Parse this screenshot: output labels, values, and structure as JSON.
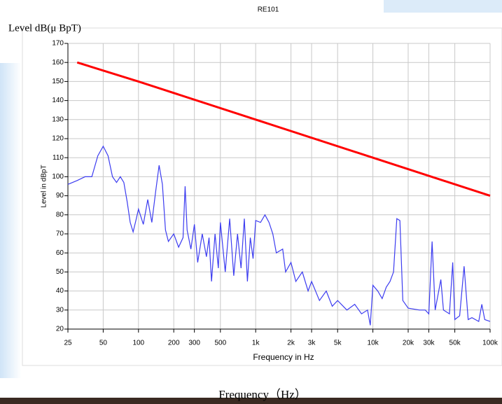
{
  "chart_data": {
    "type": "line",
    "title": "RE101",
    "header": "Level dB(μ BpT)",
    "ylabel": "Level in dBpT",
    "xlabel": "Frequency in Hz",
    "footer": "Frequency（Hz）",
    "xscale": "log",
    "grid": true,
    "xlim": [
      25,
      100000
    ],
    "ylim": [
      20,
      170
    ],
    "xticks": [
      25,
      50,
      100,
      200,
      300,
      500,
      {
        "value": 1000,
        "label": "1k"
      },
      {
        "value": 2000,
        "label": "2k"
      },
      {
        "value": 3000,
        "label": "3k"
      },
      {
        "value": 5000,
        "label": "5k"
      },
      {
        "value": 10000,
        "label": "10k"
      },
      {
        "value": 20000,
        "label": "20k"
      },
      {
        "value": 30000,
        "label": "30k"
      },
      {
        "value": 50000,
        "label": "50k"
      },
      {
        "value": 100000,
        "label": "100k"
      }
    ],
    "yticks": [
      20,
      30,
      40,
      50,
      60,
      70,
      80,
      90,
      100,
      110,
      120,
      130,
      140,
      150,
      160,
      170
    ],
    "series": [
      {
        "color": "#ff0000",
        "x": [
          30,
          100,
          1000,
          10000,
          100000
        ],
        "values": [
          160,
          150,
          130,
          110,
          90
        ]
      },
      {
        "color": "#3c3cf0",
        "x": [
          25,
          30,
          35,
          40,
          45,
          50,
          55,
          60,
          65,
          70,
          75,
          80,
          85,
          90,
          95,
          100,
          110,
          120,
          130,
          140,
          150,
          160,
          170,
          180,
          200,
          220,
          240,
          250,
          260,
          280,
          300,
          320,
          350,
          380,
          400,
          420,
          450,
          480,
          500,
          550,
          600,
          650,
          700,
          750,
          800,
          850,
          900,
          950,
          1000,
          1100,
          1200,
          1300,
          1400,
          1500,
          1700,
          1800,
          2000,
          2200,
          2500,
          2800,
          3000,
          3500,
          4000,
          4500,
          5000,
          6000,
          7000,
          8000,
          9000,
          9500,
          10000,
          11000,
          12000,
          13000,
          14000,
          15000,
          16000,
          17000,
          18000,
          20000,
          25000,
          28000,
          30000,
          32000,
          34000,
          38000,
          40000,
          45000,
          48000,
          50000,
          55000,
          60000,
          65000,
          70000,
          80000,
          85000,
          90000,
          100000
        ],
        "values": [
          96,
          98,
          100,
          100,
          111,
          116,
          111,
          100,
          97,
          100,
          97,
          87,
          76,
          71,
          77,
          83,
          75,
          88,
          76,
          92,
          106,
          96,
          72,
          66,
          70,
          63,
          68,
          95,
          72,
          62,
          75,
          55,
          70,
          58,
          68,
          45,
          70,
          52,
          76,
          50,
          78,
          48,
          70,
          52,
          78,
          45,
          68,
          57,
          77,
          76,
          80,
          76,
          70,
          60,
          62,
          50,
          55,
          45,
          50,
          40,
          45,
          35,
          40,
          32,
          35,
          30,
          33,
          28,
          30,
          22,
          43,
          40,
          36,
          42,
          45,
          50,
          78,
          77,
          35,
          31,
          30,
          30,
          28,
          66,
          30,
          46,
          30,
          28,
          55,
          25,
          27,
          53,
          25,
          26,
          24,
          33,
          25,
          24
        ]
      }
    ]
  }
}
